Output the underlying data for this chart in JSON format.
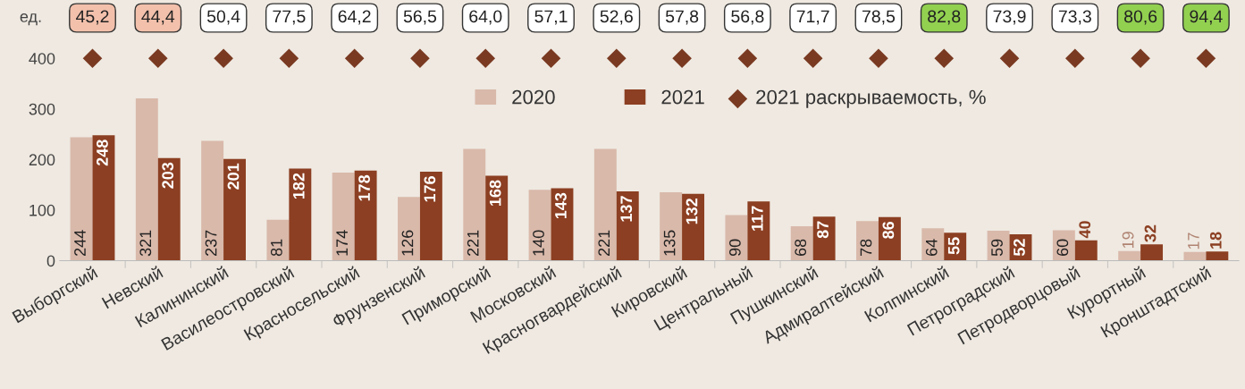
{
  "chart_data": {
    "type": "bar",
    "ylabel": "ед.",
    "categories": [
      "Выборгский",
      "Невский",
      "Калининский",
      "Василеостровский",
      "Красносельский",
      "Фрунзенский",
      "Приморский",
      "Московский",
      "Красногвардейский",
      "Кировский",
      "Центральный",
      "Пушкинский",
      "Адмиралтейский",
      "Колпинский",
      "Петроградский",
      "Петродворцовый",
      "Курортный",
      "Кронштадтский"
    ],
    "series": [
      {
        "name": "2020",
        "color": "#d9b9aa",
        "values": [
          244,
          321,
          237,
          81,
          174,
          126,
          221,
          140,
          221,
          135,
          90,
          68,
          78,
          64,
          59,
          60,
          19,
          17
        ]
      },
      {
        "name": "2021",
        "color": "#8c3f22",
        "values": [
          248,
          203,
          201,
          182,
          178,
          176,
          168,
          143,
          137,
          132,
          117,
          87,
          86,
          55,
          52,
          40,
          32,
          18
        ]
      }
    ],
    "annotations": [
      "45,2",
      "44,4",
      "50,4",
      "77,5",
      "64,2",
      "56,5",
      "64,0",
      "57,1",
      "52,6",
      "57,8",
      "56,8",
      "71,7",
      "78,5",
      "82,8",
      "73,9",
      "73,3",
      "80,6",
      "94,4",
      "2021 раскрываемость, %"
    ],
    "ylim": [
      0,
      400
    ],
    "yticks": [
      0,
      100,
      200,
      300,
      400
    ],
    "data_labels": true,
    "legend": "top",
    "grid": false
  }
}
